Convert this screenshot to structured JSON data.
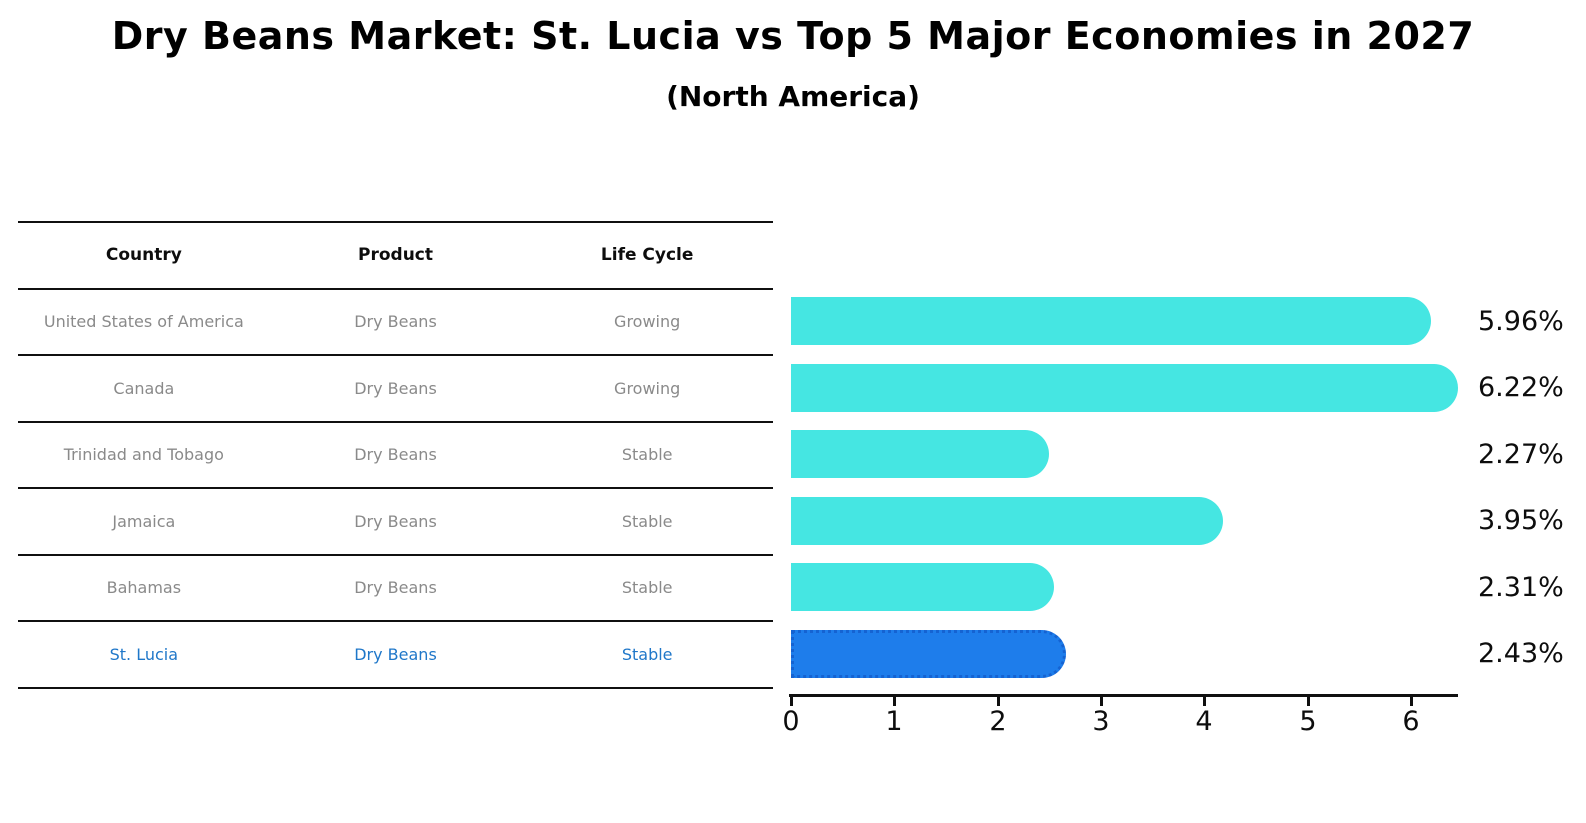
{
  "title": "Dry Beans Market: St. Lucia vs Top 5 Major Economies in 2027",
  "subtitle": "(North America)",
  "table": {
    "headers": {
      "country": "Country",
      "product": "Product",
      "life_cycle": "Life Cycle"
    },
    "rows": [
      {
        "country": "United States of America",
        "product": "Dry Beans",
        "life_cycle": "Growing"
      },
      {
        "country": "Canada",
        "product": "Dry Beans",
        "life_cycle": "Growing"
      },
      {
        "country": "Trinidad and Tobago",
        "product": "Dry Beans",
        "life_cycle": "Stable"
      },
      {
        "country": "Jamaica",
        "product": "Dry Beans",
        "life_cycle": "Stable"
      },
      {
        "country": "Bahamas",
        "product": "Dry Beans",
        "life_cycle": "Stable"
      },
      {
        "country": "St. Lucia",
        "product": "Dry Beans",
        "life_cycle": "Stable"
      }
    ],
    "highlighted_row": "St. Lucia"
  },
  "chart_data": {
    "type": "bar",
    "orientation": "horizontal",
    "title": "Dry Beans Market: St. Lucia vs Top 5 Major Economies in 2027",
    "subtitle": "(North America)",
    "categories": [
      "United States of America",
      "Canada",
      "Trinidad and Tobago",
      "Jamaica",
      "Bahamas",
      "St. Lucia"
    ],
    "values": [
      5.96,
      6.22,
      2.27,
      3.95,
      2.31,
      2.43
    ],
    "value_labels": [
      "5.96%",
      "6.22%",
      "2.27%",
      "3.95%",
      "2.31%",
      "2.43%"
    ],
    "unit": "%",
    "xlim": [
      0,
      6.45
    ],
    "x_ticks": [
      0,
      1,
      2,
      3,
      4,
      5,
      6
    ],
    "grid": false,
    "legend": false,
    "bar_color": "#45e6e2",
    "highlight_color": "#1e7deb",
    "highlight_border_color": "#1563d2",
    "highlight_index": 5,
    "highlight_category": "St. Lucia"
  },
  "colors": {
    "background": "#ffffff",
    "text_primary": "#000000",
    "table_text": "#8a8a8a",
    "table_line": "#101010",
    "highlight_text": "#1f77c9"
  }
}
